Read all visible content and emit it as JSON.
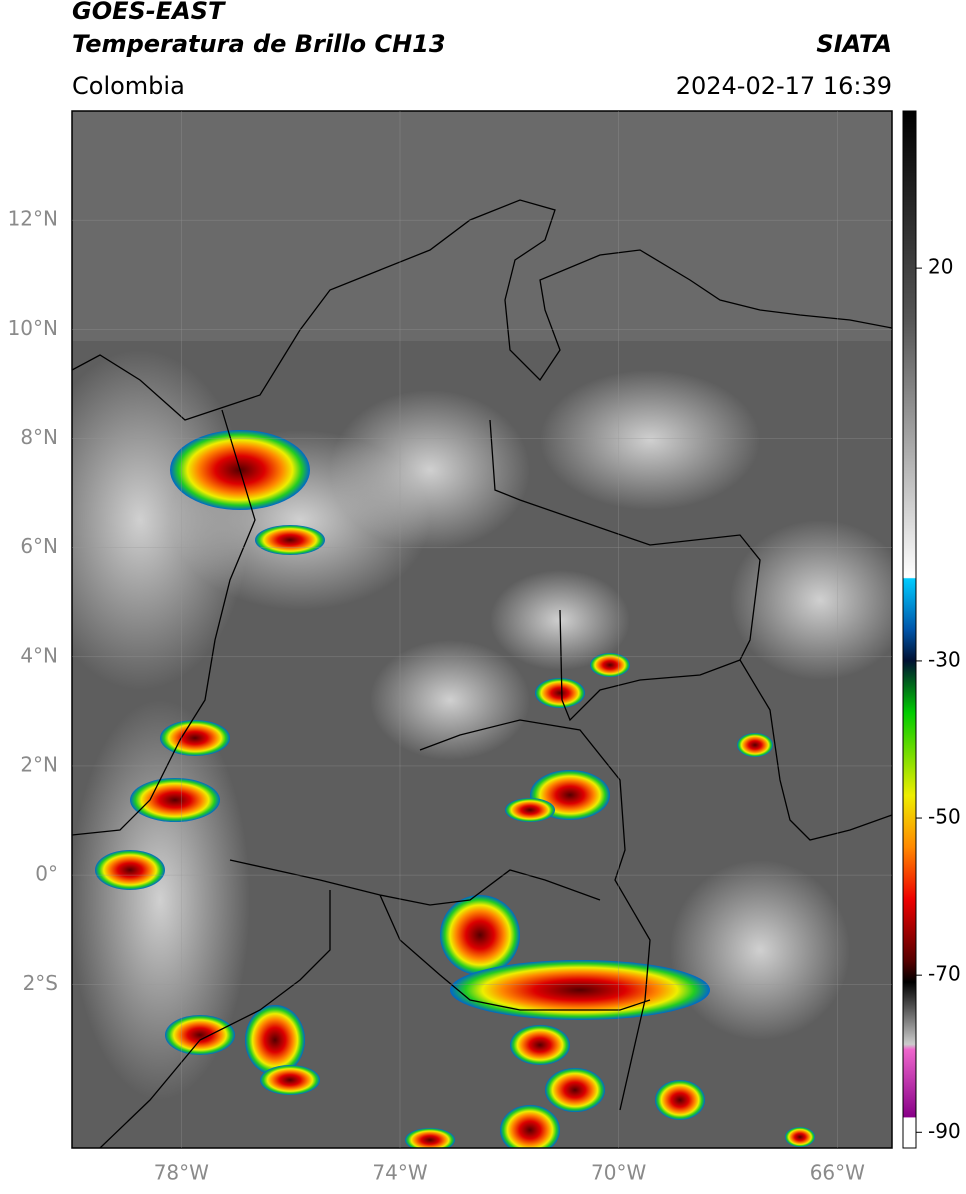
{
  "header": {
    "satellite": "GOES-EAST",
    "product": "Temperatura de Brillo CH13",
    "region": "Colombia",
    "source": "SIATA",
    "datetime": "2024-02-17 16:39"
  },
  "map": {
    "ylim": [
      -5,
      14
    ],
    "xlim": [
      -80,
      -65
    ],
    "yticks": [
      {
        "value": 12,
        "label": "12°N"
      },
      {
        "value": 10,
        "label": "10°N"
      },
      {
        "value": 8,
        "label": "8°N"
      },
      {
        "value": 6,
        "label": "6°N"
      },
      {
        "value": 4,
        "label": "4°N"
      },
      {
        "value": 2,
        "label": "2°N"
      },
      {
        "value": 0,
        "label": "0°"
      },
      {
        "value": -2,
        "label": "2°S"
      }
    ],
    "xticks": [
      {
        "value": -78,
        "label": "78°W"
      },
      {
        "value": -74,
        "label": "74°W"
      },
      {
        "value": -70,
        "label": "70°W"
      },
      {
        "value": -66,
        "label": "66°W"
      }
    ]
  },
  "colorbar": {
    "lim": [
      -92,
      40
    ],
    "ticks": [
      20,
      -30,
      -50,
      -70,
      -90
    ]
  }
}
